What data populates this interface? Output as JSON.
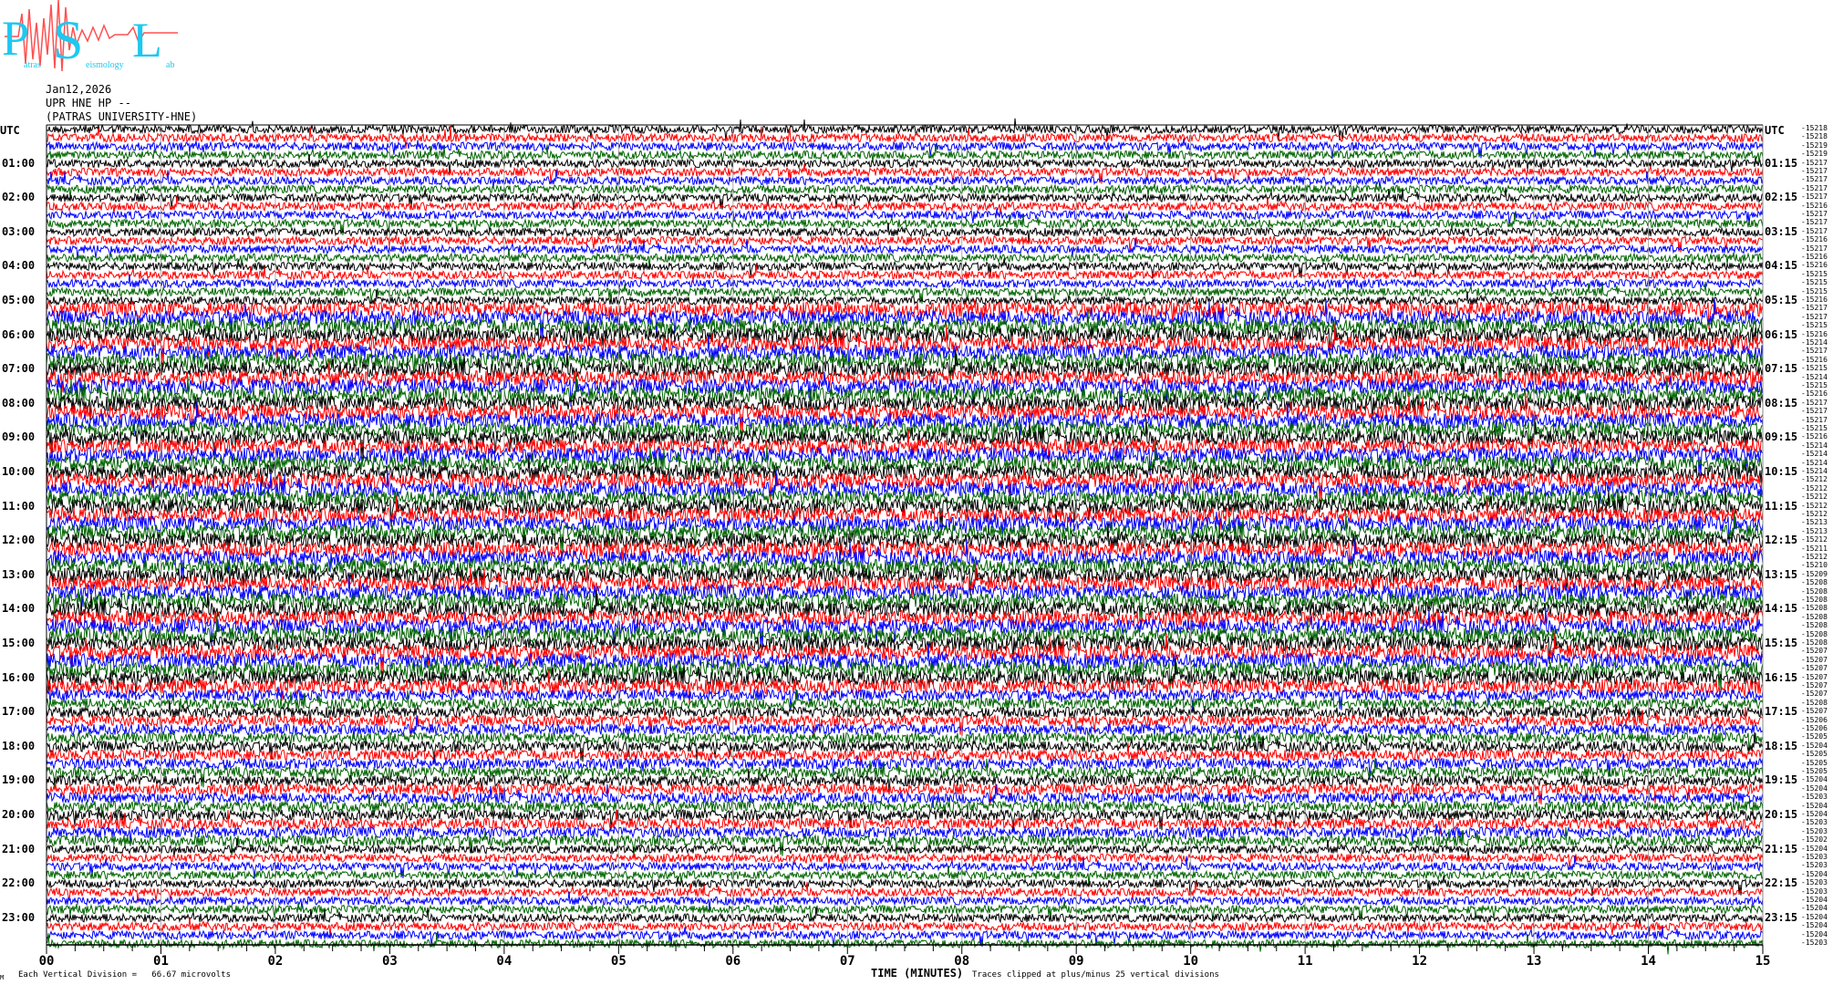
{
  "logo": {
    "big_letters": [
      "P",
      "S",
      "L"
    ],
    "small_text": [
      "atras",
      "eismology",
      "ab"
    ],
    "colors": {
      "letters": "#1ec8f0",
      "wave": "#ff4040"
    }
  },
  "header": {
    "date": "Jan12,2026",
    "station": "UPR HNE HP --",
    "network": "(PATRAS UNIVERSITY-HNE)"
  },
  "left_axis": {
    "title": "UTC",
    "labels": [
      "01:00",
      "02:00",
      "03:00",
      "04:00",
      "05:00",
      "06:00",
      "07:00",
      "08:00",
      "09:00",
      "10:00",
      "11:00",
      "12:00",
      "13:00",
      "14:00",
      "15:00",
      "16:00",
      "17:00",
      "18:00",
      "19:00",
      "20:00",
      "21:00",
      "22:00",
      "23:00"
    ]
  },
  "right_axis": {
    "title": "UTC",
    "labels": [
      "01:15",
      "02:15",
      "03:15",
      "04:15",
      "05:15",
      "06:15",
      "07:15",
      "08:15",
      "09:15",
      "10:15",
      "11:15",
      "12:15",
      "13:15",
      "14:15",
      "15:15",
      "16:15",
      "17:15",
      "18:15",
      "19:15",
      "20:15",
      "21:15",
      "22:15",
      "23:15"
    ]
  },
  "row_values": [
    "-15218",
    "-15218",
    "-15219",
    "-15219",
    "-15217",
    "-15217",
    "-15217",
    "-15217",
    "-15217",
    "-15216",
    "-15217",
    "-15217",
    "-15217",
    "-15216",
    "-15217",
    "-15216",
    "-15216",
    "-15215",
    "-15215",
    "-15215",
    "-15216",
    "-15217",
    "-15217",
    "-15215",
    "-15216",
    "-15214",
    "-15217",
    "-15216",
    "-15215",
    "-15214",
    "-15215",
    "-15216",
    "-15217",
    "-15217",
    "-15217",
    "-15215",
    "-15216",
    "-15214",
    "-15214",
    "-15214",
    "-15214",
    "-15212",
    "-15212",
    "-15212",
    "-15212",
    "-15212",
    "-15213",
    "-15213",
    "-15212",
    "-15211",
    "-15212",
    "-15210",
    "-15209",
    "-15208",
    "-15208",
    "-15208",
    "-15208",
    "-15208",
    "-15208",
    "-15208",
    "-15208",
    "-15207",
    "-15207",
    "-15207",
    "-15207",
    "-15207",
    "-15207",
    "-15208",
    "-15207",
    "-15206",
    "-15206",
    "-15205",
    "-15204",
    "-15205",
    "-15205",
    "-15205",
    "-15204",
    "-15204",
    "-15203",
    "-15204",
    "-15204",
    "-15203",
    "-15203",
    "-15202",
    "-15204",
    "-15203",
    "-15203",
    "-15204",
    "-15203",
    "-15203",
    "-15204",
    "-15204",
    "-15204",
    "-15204",
    "-15204",
    "-15203"
  ],
  "footer": {
    "corner_mark": "M",
    "vertical_division": "Each Vertical Division =   66.67 microvolts",
    "time_label": "TIME (MINUTES)",
    "clip_note": "Traces clipped at plus/minus 25 vertical divisions"
  },
  "chart_data": {
    "type": "line",
    "xlabel": "TIME (MINUTES)",
    "xlim": [
      0,
      15
    ],
    "x_ticks": [
      "00",
      "01",
      "02",
      "03",
      "04",
      "05",
      "06",
      "07",
      "08",
      "09",
      "10",
      "11",
      "12",
      "13",
      "14",
      "15"
    ],
    "row_minutes": 15,
    "rows": 96,
    "trace_colors": [
      "#000000",
      "#ff0000",
      "#0000ff",
      "#006400"
    ],
    "grid": "vertical every minute"
  }
}
